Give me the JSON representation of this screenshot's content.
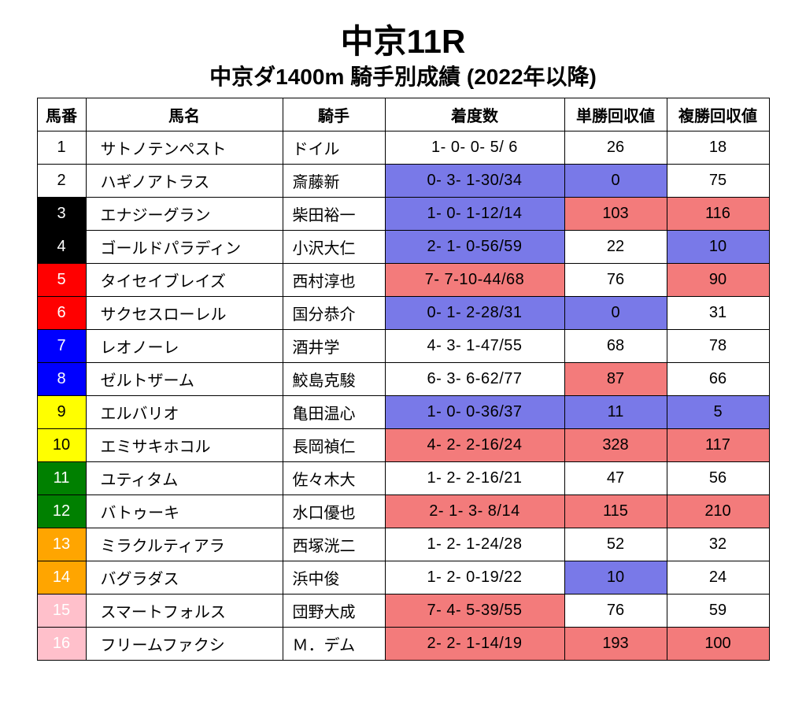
{
  "title": "中京11R",
  "subtitle": "中京ダ1400m 騎手別成績 (2022年以降)",
  "columns": [
    "馬番",
    "馬名",
    "騎手",
    "着度数",
    "単勝回収値",
    "複勝回収値"
  ],
  "colors": {
    "white": "#ffffff",
    "black": "#000000",
    "red": "#ff0000",
    "blue": "#0000ff",
    "yellow": "#ffff00",
    "green": "#008000",
    "orange": "#ffa500",
    "pink": "#ffc0cb",
    "hl_red": "#f37b7b",
    "hl_blue": "#7979e8"
  },
  "rows": [
    {
      "num": 1,
      "frame": "white",
      "numText": "#000",
      "horse": "サトノテンペスト",
      "jockey": "ドイル",
      "record": "1- 0- 0- 5/ 6",
      "win": 26,
      "plc": 18,
      "recHL": null,
      "winHL": null,
      "plcHL": null
    },
    {
      "num": 2,
      "frame": "white",
      "numText": "#000",
      "horse": "ハギノアトラス",
      "jockey": "斎藤新",
      "record": "0- 3- 1-30/34",
      "win": 0,
      "plc": 75,
      "recHL": "hl_blue",
      "winHL": "hl_blue",
      "plcHL": null
    },
    {
      "num": 3,
      "frame": "black",
      "numText": "#fff",
      "horse": "エナジーグラン",
      "jockey": "柴田裕一",
      "record": "1- 0- 1-12/14",
      "win": 103,
      "plc": 116,
      "recHL": "hl_blue",
      "winHL": "hl_red",
      "plcHL": "hl_red"
    },
    {
      "num": 4,
      "frame": "black",
      "numText": "#fff",
      "horse": "ゴールドパラディン",
      "jockey": "小沢大仁",
      "record": "2- 1- 0-56/59",
      "win": 22,
      "plc": 10,
      "recHL": "hl_blue",
      "winHL": null,
      "plcHL": "hl_blue"
    },
    {
      "num": 5,
      "frame": "red",
      "numText": "#fff",
      "horse": "タイセイブレイズ",
      "jockey": "西村淳也",
      "record": "7- 7-10-44/68",
      "win": 76,
      "plc": 90,
      "recHL": "hl_red",
      "winHL": null,
      "plcHL": "hl_red"
    },
    {
      "num": 6,
      "frame": "red",
      "numText": "#fff",
      "horse": "サクセスローレル",
      "jockey": "国分恭介",
      "record": "0- 1- 2-28/31",
      "win": 0,
      "plc": 31,
      "recHL": "hl_blue",
      "winHL": "hl_blue",
      "plcHL": null
    },
    {
      "num": 7,
      "frame": "blue",
      "numText": "#fff",
      "horse": "レオノーレ",
      "jockey": "酒井学",
      "record": "4- 3- 1-47/55",
      "win": 68,
      "plc": 78,
      "recHL": null,
      "winHL": null,
      "plcHL": null
    },
    {
      "num": 8,
      "frame": "blue",
      "numText": "#fff",
      "horse": "ゼルトザーム",
      "jockey": "鮫島克駿",
      "record": "6- 3- 6-62/77",
      "win": 87,
      "plc": 66,
      "recHL": null,
      "winHL": "hl_red",
      "plcHL": null
    },
    {
      "num": 9,
      "frame": "yellow",
      "numText": "#000",
      "horse": "エルバリオ",
      "jockey": "亀田温心",
      "record": "1- 0- 0-36/37",
      "win": 11,
      "plc": 5,
      "recHL": "hl_blue",
      "winHL": "hl_blue",
      "plcHL": "hl_blue"
    },
    {
      "num": 10,
      "frame": "yellow",
      "numText": "#000",
      "horse": "エミサキホコル",
      "jockey": "長岡禎仁",
      "record": "4- 2- 2-16/24",
      "win": 328,
      "plc": 117,
      "recHL": "hl_red",
      "winHL": "hl_red",
      "plcHL": "hl_red"
    },
    {
      "num": 11,
      "frame": "green",
      "numText": "#fff",
      "horse": "ユティタム",
      "jockey": "佐々木大",
      "record": "1- 2- 2-16/21",
      "win": 47,
      "plc": 56,
      "recHL": null,
      "winHL": null,
      "plcHL": null
    },
    {
      "num": 12,
      "frame": "green",
      "numText": "#fff",
      "horse": "バトゥーキ",
      "jockey": "水口優也",
      "record": "2- 1- 3- 8/14",
      "win": 115,
      "plc": 210,
      "recHL": "hl_red",
      "winHL": "hl_red",
      "plcHL": "hl_red"
    },
    {
      "num": 13,
      "frame": "orange",
      "numText": "#fff",
      "horse": "ミラクルティアラ",
      "jockey": "西塚洸二",
      "record": "1- 2- 1-24/28",
      "win": 52,
      "plc": 32,
      "recHL": null,
      "winHL": null,
      "plcHL": null
    },
    {
      "num": 14,
      "frame": "orange",
      "numText": "#fff",
      "horse": "バグラダス",
      "jockey": "浜中俊",
      "record": "1- 2- 0-19/22",
      "win": 10,
      "plc": 24,
      "recHL": null,
      "winHL": "hl_blue",
      "plcHL": null
    },
    {
      "num": 15,
      "frame": "pink",
      "numText": "#fff",
      "horse": "スマートフォルス",
      "jockey": "団野大成",
      "record": "7- 4- 5-39/55",
      "win": 76,
      "plc": 59,
      "recHL": "hl_red",
      "winHL": null,
      "plcHL": null
    },
    {
      "num": 16,
      "frame": "pink",
      "numText": "#fff",
      "horse": "フリームファクシ",
      "jockey": "Ｍ．デム",
      "record": "2- 2- 1-14/19",
      "win": 193,
      "plc": 100,
      "recHL": "hl_red",
      "winHL": "hl_red",
      "plcHL": "hl_red"
    }
  ]
}
